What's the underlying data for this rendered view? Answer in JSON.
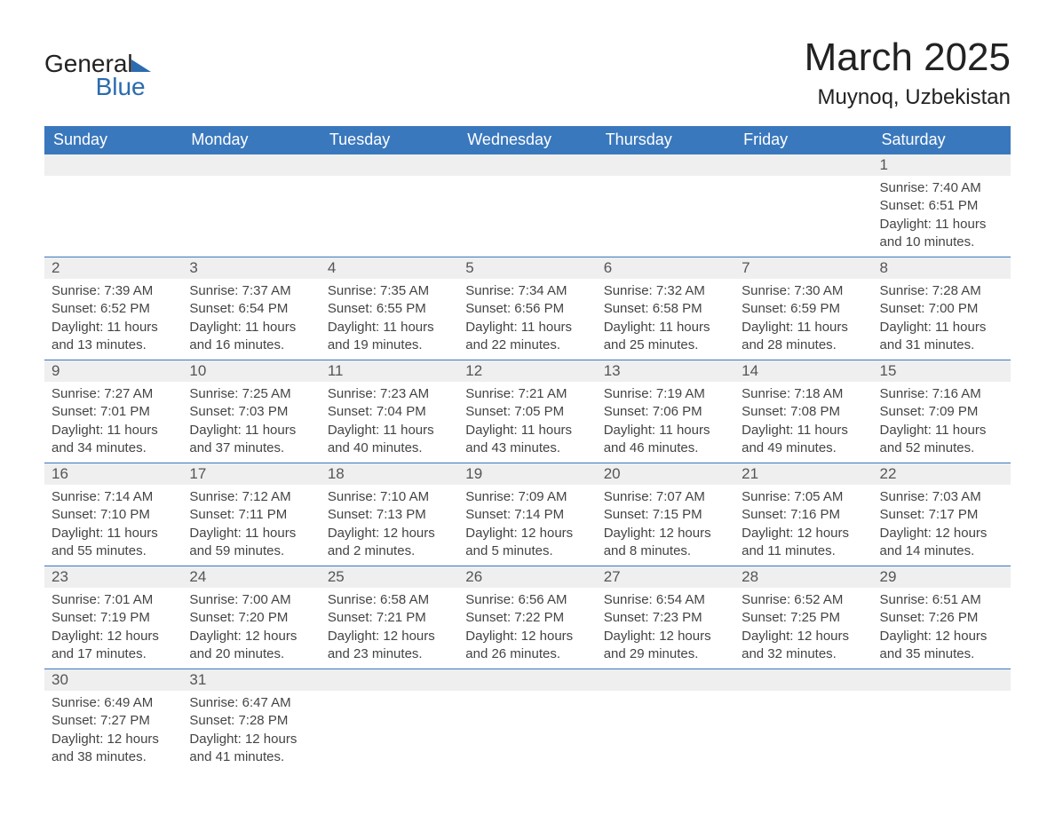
{
  "brand": {
    "name_part1": "General",
    "name_part2": "Blue",
    "color_primary": "#2b6bb0"
  },
  "title": {
    "month_year": "March 2025",
    "location": "Muynoq, Uzbekistan"
  },
  "calendar": {
    "header_bg": "#3a78bd",
    "header_fg": "#ffffff",
    "daynum_bg": "#efefef",
    "border_color": "#3a78bd",
    "text_color": "#444444",
    "columns": [
      "Sunday",
      "Monday",
      "Tuesday",
      "Wednesday",
      "Thursday",
      "Friday",
      "Saturday"
    ],
    "weeks": [
      [
        null,
        null,
        null,
        null,
        null,
        null,
        {
          "n": "1",
          "sunrise": "7:40 AM",
          "sunset": "6:51 PM",
          "daylight": "11 hours and 10 minutes."
        }
      ],
      [
        {
          "n": "2",
          "sunrise": "7:39 AM",
          "sunset": "6:52 PM",
          "daylight": "11 hours and 13 minutes."
        },
        {
          "n": "3",
          "sunrise": "7:37 AM",
          "sunset": "6:54 PM",
          "daylight": "11 hours and 16 minutes."
        },
        {
          "n": "4",
          "sunrise": "7:35 AM",
          "sunset": "6:55 PM",
          "daylight": "11 hours and 19 minutes."
        },
        {
          "n": "5",
          "sunrise": "7:34 AM",
          "sunset": "6:56 PM",
          "daylight": "11 hours and 22 minutes."
        },
        {
          "n": "6",
          "sunrise": "7:32 AM",
          "sunset": "6:58 PM",
          "daylight": "11 hours and 25 minutes."
        },
        {
          "n": "7",
          "sunrise": "7:30 AM",
          "sunset": "6:59 PM",
          "daylight": "11 hours and 28 minutes."
        },
        {
          "n": "8",
          "sunrise": "7:28 AM",
          "sunset": "7:00 PM",
          "daylight": "11 hours and 31 minutes."
        }
      ],
      [
        {
          "n": "9",
          "sunrise": "7:27 AM",
          "sunset": "7:01 PM",
          "daylight": "11 hours and 34 minutes."
        },
        {
          "n": "10",
          "sunrise": "7:25 AM",
          "sunset": "7:03 PM",
          "daylight": "11 hours and 37 minutes."
        },
        {
          "n": "11",
          "sunrise": "7:23 AM",
          "sunset": "7:04 PM",
          "daylight": "11 hours and 40 minutes."
        },
        {
          "n": "12",
          "sunrise": "7:21 AM",
          "sunset": "7:05 PM",
          "daylight": "11 hours and 43 minutes."
        },
        {
          "n": "13",
          "sunrise": "7:19 AM",
          "sunset": "7:06 PM",
          "daylight": "11 hours and 46 minutes."
        },
        {
          "n": "14",
          "sunrise": "7:18 AM",
          "sunset": "7:08 PM",
          "daylight": "11 hours and 49 minutes."
        },
        {
          "n": "15",
          "sunrise": "7:16 AM",
          "sunset": "7:09 PM",
          "daylight": "11 hours and 52 minutes."
        }
      ],
      [
        {
          "n": "16",
          "sunrise": "7:14 AM",
          "sunset": "7:10 PM",
          "daylight": "11 hours and 55 minutes."
        },
        {
          "n": "17",
          "sunrise": "7:12 AM",
          "sunset": "7:11 PM",
          "daylight": "11 hours and 59 minutes."
        },
        {
          "n": "18",
          "sunrise": "7:10 AM",
          "sunset": "7:13 PM",
          "daylight": "12 hours and 2 minutes."
        },
        {
          "n": "19",
          "sunrise": "7:09 AM",
          "sunset": "7:14 PM",
          "daylight": "12 hours and 5 minutes."
        },
        {
          "n": "20",
          "sunrise": "7:07 AM",
          "sunset": "7:15 PM",
          "daylight": "12 hours and 8 minutes."
        },
        {
          "n": "21",
          "sunrise": "7:05 AM",
          "sunset": "7:16 PM",
          "daylight": "12 hours and 11 minutes."
        },
        {
          "n": "22",
          "sunrise": "7:03 AM",
          "sunset": "7:17 PM",
          "daylight": "12 hours and 14 minutes."
        }
      ],
      [
        {
          "n": "23",
          "sunrise": "7:01 AM",
          "sunset": "7:19 PM",
          "daylight": "12 hours and 17 minutes."
        },
        {
          "n": "24",
          "sunrise": "7:00 AM",
          "sunset": "7:20 PM",
          "daylight": "12 hours and 20 minutes."
        },
        {
          "n": "25",
          "sunrise": "6:58 AM",
          "sunset": "7:21 PM",
          "daylight": "12 hours and 23 minutes."
        },
        {
          "n": "26",
          "sunrise": "6:56 AM",
          "sunset": "7:22 PM",
          "daylight": "12 hours and 26 minutes."
        },
        {
          "n": "27",
          "sunrise": "6:54 AM",
          "sunset": "7:23 PM",
          "daylight": "12 hours and 29 minutes."
        },
        {
          "n": "28",
          "sunrise": "6:52 AM",
          "sunset": "7:25 PM",
          "daylight": "12 hours and 32 minutes."
        },
        {
          "n": "29",
          "sunrise": "6:51 AM",
          "sunset": "7:26 PM",
          "daylight": "12 hours and 35 minutes."
        }
      ],
      [
        {
          "n": "30",
          "sunrise": "6:49 AM",
          "sunset": "7:27 PM",
          "daylight": "12 hours and 38 minutes."
        },
        {
          "n": "31",
          "sunrise": "6:47 AM",
          "sunset": "7:28 PM",
          "daylight": "12 hours and 41 minutes."
        },
        null,
        null,
        null,
        null,
        null
      ]
    ],
    "labels": {
      "sunrise": "Sunrise:",
      "sunset": "Sunset:",
      "daylight": "Daylight:"
    }
  }
}
